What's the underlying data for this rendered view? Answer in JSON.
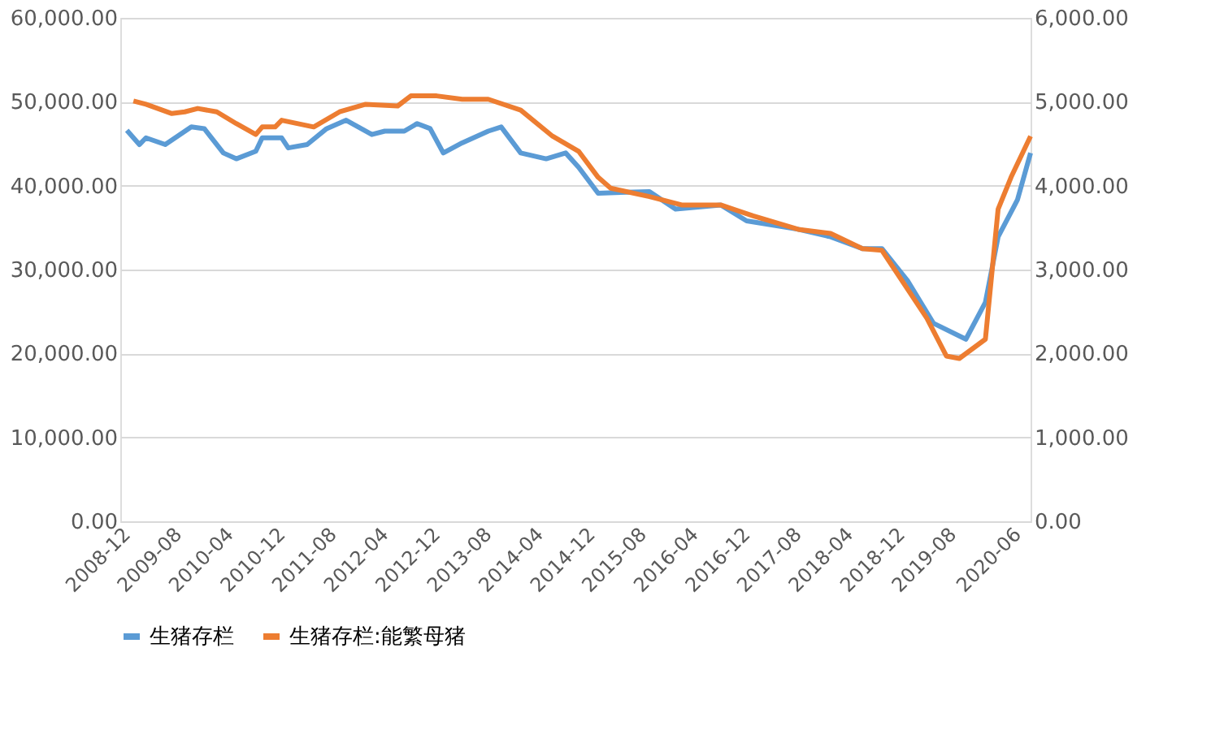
{
  "chart_data": {
    "type": "line",
    "legend": "bottom",
    "grid": "y",
    "marker": "none",
    "line_style": "solid",
    "xlim": [
      "2008-12",
      "2020-09"
    ],
    "xticks": [
      "2008-12",
      "2009-08",
      "2010-04",
      "2010-12",
      "2011-08",
      "2012-04",
      "2012-12",
      "2013-08",
      "2014-04",
      "2014-12",
      "2015-08",
      "2016-04",
      "2016-12",
      "2017-08",
      "2018-04",
      "2018-12",
      "2019-08",
      "2020-06"
    ],
    "ylim": [
      0,
      60000
    ],
    "yticks": [
      {
        "value": 0,
        "label": "0.00"
      },
      {
        "value": 10000,
        "label": "10,000.00"
      },
      {
        "value": 20000,
        "label": "20,000.00"
      },
      {
        "value": 30000,
        "label": "30,000.00"
      },
      {
        "value": 40000,
        "label": "40,000.00"
      },
      {
        "value": 50000,
        "label": "50,000.00"
      },
      {
        "value": 60000,
        "label": "60,000.00"
      }
    ],
    "y2lim": [
      0,
      6000
    ],
    "y2ticks": [
      {
        "value": 0,
        "label": "0.00"
      },
      {
        "value": 1000,
        "label": "1,000.00"
      },
      {
        "value": 2000,
        "label": "2,000.00"
      },
      {
        "value": 3000,
        "label": "3,000.00"
      },
      {
        "value": 4000,
        "label": "4,000.00"
      },
      {
        "value": 5000,
        "label": "5,000.00"
      },
      {
        "value": 6000,
        "label": "6,000.00"
      }
    ],
    "series": [
      {
        "name": "生猪存栏",
        "color": "#5b9bd5",
        "x": [
          "2009-01",
          "2009-03",
          "2009-04",
          "2009-07",
          "2009-11",
          "2010-01",
          "2010-04",
          "2010-06",
          "2010-09",
          "2010-10",
          "2011-01",
          "2011-02",
          "2011-05",
          "2011-08",
          "2011-11",
          "2012-03",
          "2012-05",
          "2012-08",
          "2012-10",
          "2012-12",
          "2013-02",
          "2013-05",
          "2013-09",
          "2013-11",
          "2014-02",
          "2014-06",
          "2014-09",
          "2014-11",
          "2015-02",
          "2015-10",
          "2016-02",
          "2016-09",
          "2017-01",
          "2017-09",
          "2018-02",
          "2018-07",
          "2018-10",
          "2019-02",
          "2019-06",
          "2019-11",
          "2020-02",
          "2020-04",
          "2020-07",
          "2020-09"
        ],
        "values": [
          46600,
          44900,
          45700,
          44900,
          47000,
          46800,
          43900,
          43200,
          44100,
          45700,
          45700,
          44500,
          44900,
          46800,
          47800,
          46100,
          46500,
          46500,
          47400,
          46800,
          43900,
          45100,
          46500,
          47000,
          43900,
          43200,
          43900,
          42200,
          39100,
          39300,
          37200,
          37700,
          35800,
          34800,
          33900,
          32500,
          32500,
          28600,
          23600,
          21700,
          26100,
          33900,
          38300,
          43900
        ]
      },
      {
        "name": "生猪存栏:能繁母猪",
        "color": "#ed7d31",
        "axis": "y2",
        "x": [
          "2009-02",
          "2009-04",
          "2009-08",
          "2009-10",
          "2009-12",
          "2010-03",
          "2010-06",
          "2010-09",
          "2010-10",
          "2010-12",
          "2011-01",
          "2011-06",
          "2011-10",
          "2012-02",
          "2012-07",
          "2012-09",
          "2013-01",
          "2013-05",
          "2013-09",
          "2014-02",
          "2014-07",
          "2014-11",
          "2015-02",
          "2015-04",
          "2015-10",
          "2016-03",
          "2016-09",
          "2017-02",
          "2017-09",
          "2018-02",
          "2018-07",
          "2018-10",
          "2019-05",
          "2019-08",
          "2019-10",
          "2020-02",
          "2020-04",
          "2020-06",
          "2020-09"
        ],
        "values": [
          5010,
          4970,
          4860,
          4880,
          4920,
          4880,
          4740,
          4610,
          4700,
          4700,
          4780,
          4700,
          4880,
          4970,
          4950,
          5070,
          5070,
          5030,
          5030,
          4900,
          4590,
          4410,
          4100,
          3970,
          3870,
          3770,
          3770,
          3640,
          3480,
          3430,
          3250,
          3230,
          2420,
          1970,
          1940,
          2170,
          3720,
          4100,
          4590
        ]
      }
    ]
  }
}
